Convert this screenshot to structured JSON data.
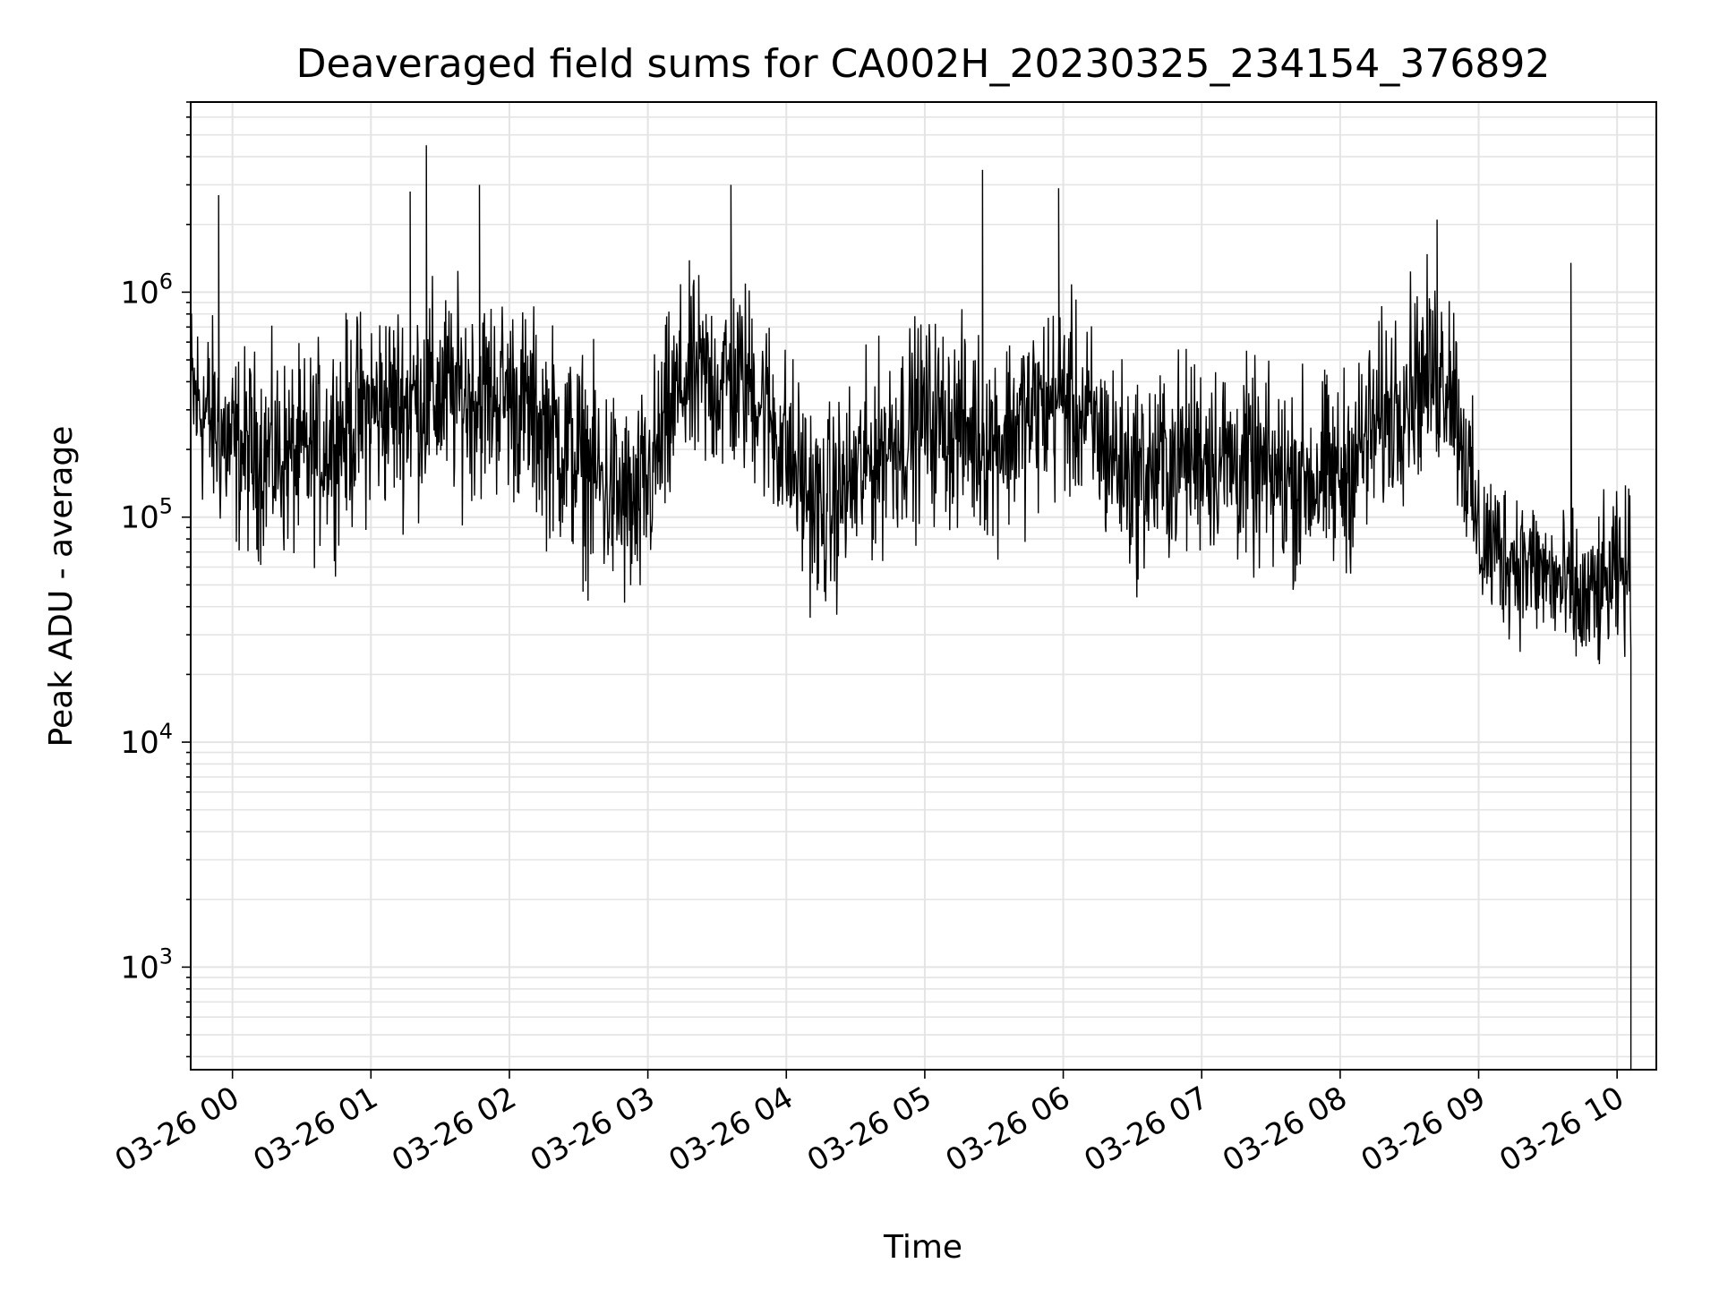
{
  "chart_data": {
    "type": "line",
    "title": "Deaveraged field sums for CA002H_20230325_234154_376892",
    "xlabel": "Time",
    "ylabel": "Peak ADU - average",
    "x_axis": {
      "type": "time",
      "range": [
        "2023-03-25T23:41:54",
        "2023-03-26T10:17:00"
      ],
      "ticks": [
        "03-26 00",
        "03-26 01",
        "03-26 02",
        "03-26 03",
        "03-26 04",
        "03-26 05",
        "03-26 06",
        "03-26 07",
        "03-26 08",
        "03-26 09",
        "03-26 10"
      ]
    },
    "y_axis": {
      "scale": "log",
      "range": [
        350,
        7000000
      ],
      "ticks": [
        {
          "base": "10",
          "exp": "3"
        },
        {
          "base": "10",
          "exp": "4"
        },
        {
          "base": "10",
          "exp": "5"
        },
        {
          "base": "10",
          "exp": "6"
        }
      ]
    },
    "grid": true,
    "line_color": "#000000",
    "series": [
      {
        "segments_hourly_start_from_0000": [
          {
            "t": "2023-03-25T23:42",
            "center": 350000,
            "spread": 3.0
          },
          {
            "t": "2023-03-26T00:00",
            "center": 200000,
            "spread": 3.0
          },
          {
            "t": "2023-03-26T00:30",
            "center": 180000,
            "spread": 3.0
          },
          {
            "t": "2023-03-26T01:00",
            "center": 300000,
            "spread": 3.2
          },
          {
            "t": "2023-03-26T01:30",
            "center": 350000,
            "spread": 3.2
          },
          {
            "t": "2023-03-26T02:00",
            "center": 350000,
            "spread": 3.0
          },
          {
            "t": "2023-03-26T02:30",
            "center": 180000,
            "spread": 3.3
          },
          {
            "t": "2023-03-26T02:55",
            "center": 100000,
            "spread": 3.3
          },
          {
            "t": "2023-03-26T03:15",
            "center": 400000,
            "spread": 3.0
          },
          {
            "t": "2023-03-26T03:45",
            "center": 400000,
            "spread": 3.0
          },
          {
            "t": "2023-03-26T04:15",
            "center": 100000,
            "spread": 3.0
          },
          {
            "t": "2023-03-26T04:45",
            "center": 220000,
            "spread": 3.0
          },
          {
            "t": "2023-03-26T05:00",
            "center": 280000,
            "spread": 3.0
          },
          {
            "t": "2023-03-26T05:30",
            "center": 220000,
            "spread": 3.0
          },
          {
            "t": "2023-03-26T06:00",
            "center": 350000,
            "spread": 3.0
          },
          {
            "t": "2023-03-26T06:30",
            "center": 150000,
            "spread": 3.0
          },
          {
            "t": "2023-03-26T07:00",
            "center": 200000,
            "spread": 3.0
          },
          {
            "t": "2023-03-26T07:30",
            "center": 150000,
            "spread": 3.0
          },
          {
            "t": "2023-03-26T08:00",
            "center": 150000,
            "spread": 3.0
          },
          {
            "t": "2023-03-26T08:30",
            "center": 400000,
            "spread": 3.0
          },
          {
            "t": "2023-03-26T08:48",
            "center": 450000,
            "spread": 3.0
          },
          {
            "t": "2023-03-26T09:00",
            "center": 80000,
            "spread": 2.5
          },
          {
            "t": "2023-03-26T09:30",
            "center": 55000,
            "spread": 2.2
          },
          {
            "t": "2023-03-26T09:45",
            "center": 40000,
            "spread": 2.4
          },
          {
            "t": "2023-03-26T10:06",
            "center": 60000,
            "spread": 2.4
          }
        ],
        "spikes": [
          {
            "t": "2023-03-25T23:54",
            "v": 2700000
          },
          {
            "t": "2023-03-26T01:24",
            "v": 4500000
          },
          {
            "t": "2023-03-26T01:17",
            "v": 2800000
          },
          {
            "t": "2023-03-26T01:47",
            "v": 3000000
          },
          {
            "t": "2023-03-26T03:36",
            "v": 3000000
          },
          {
            "t": "2023-03-26T05:25",
            "v": 3500000
          },
          {
            "t": "2023-03-26T05:58",
            "v": 2900000
          },
          {
            "t": "2023-03-26T08:42",
            "v": 2100000
          },
          {
            "t": "2023-03-26T09:40",
            "v": 1350000
          },
          {
            "t": "2023-03-26T10:06",
            "v": 350
          }
        ]
      }
    ]
  }
}
